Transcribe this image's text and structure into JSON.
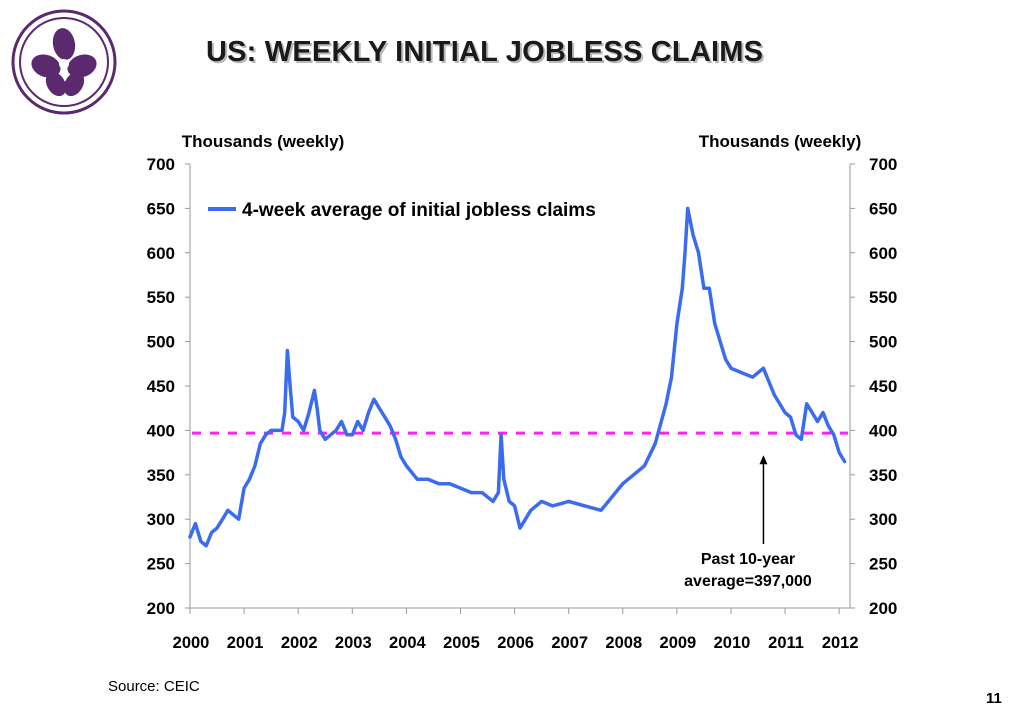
{
  "slide": {
    "title": "US: WEEKLY INITIAL JOBLESS CLAIMS",
    "source": "Source: CEIC",
    "page_number": "11"
  },
  "logo": {
    "icon": "bauhinia-flower-logo",
    "color": "#5b2a6e"
  },
  "colors": {
    "series": "#3b6cf0",
    "reference": "#ff22ee",
    "axis": "#9a9a9a"
  },
  "chart_data": {
    "type": "line",
    "ylabel_left": "Thousands (weekly)",
    "ylabel_right": "Thousands (weekly)",
    "ylim": [
      200,
      700
    ],
    "yticks": [
      "200",
      "250",
      "300",
      "350",
      "400",
      "450",
      "500",
      "550",
      "600",
      "650",
      "700"
    ],
    "xlim": [
      2000,
      2012.2
    ],
    "xticks": [
      "2000",
      "2001",
      "2002",
      "2003",
      "2004",
      "2005",
      "2006",
      "2007",
      "2008",
      "2009",
      "2010",
      "2011",
      "2012"
    ],
    "legend": "top-left",
    "grid": false,
    "series": [
      {
        "name": "4-week average of initial jobless claims",
        "x": [
          2000.0,
          2000.1,
          2000.2,
          2000.3,
          2000.4,
          2000.5,
          2000.6,
          2000.7,
          2000.8,
          2000.9,
          2001.0,
          2001.1,
          2001.2,
          2001.3,
          2001.4,
          2001.5,
          2001.6,
          2001.7,
          2001.75,
          2001.8,
          2001.85,
          2001.9,
          2002.0,
          2002.1,
          2002.2,
          2002.3,
          2002.35,
          2002.4,
          2002.5,
          2002.6,
          2002.7,
          2002.8,
          2002.9,
          2003.0,
          2003.1,
          2003.2,
          2003.3,
          2003.4,
          2003.5,
          2003.6,
          2003.7,
          2003.8,
          2003.9,
          2004.0,
          2004.2,
          2004.4,
          2004.6,
          2004.8,
          2005.0,
          2005.2,
          2005.4,
          2005.6,
          2005.7,
          2005.75,
          2005.8,
          2005.9,
          2006.0,
          2006.1,
          2006.3,
          2006.5,
          2006.7,
          2007.0,
          2007.3,
          2007.6,
          2008.0,
          2008.2,
          2008.4,
          2008.6,
          2008.8,
          2008.9,
          2009.0,
          2009.1,
          2009.15,
          2009.2,
          2009.3,
          2009.4,
          2009.5,
          2009.6,
          2009.7,
          2009.8,
          2009.9,
          2010.0,
          2010.2,
          2010.4,
          2010.6,
          2010.8,
          2011.0,
          2011.1,
          2011.2,
          2011.3,
          2011.4,
          2011.5,
          2011.6,
          2011.7,
          2011.8,
          2011.9,
          2012.0,
          2012.1
        ],
        "values": [
          280,
          295,
          275,
          270,
          285,
          290,
          300,
          310,
          305,
          300,
          335,
          345,
          360,
          385,
          395,
          400,
          400,
          400,
          420,
          490,
          450,
          415,
          410,
          400,
          420,
          445,
          425,
          400,
          390,
          395,
          400,
          410,
          395,
          395,
          410,
          400,
          420,
          435,
          425,
          415,
          405,
          390,
          370,
          360,
          345,
          345,
          340,
          340,
          335,
          330,
          330,
          320,
          330,
          395,
          345,
          320,
          315,
          290,
          310,
          320,
          315,
          320,
          315,
          310,
          340,
          350,
          360,
          385,
          430,
          460,
          520,
          560,
          600,
          650,
          620,
          600,
          560,
          560,
          520,
          500,
          480,
          470,
          465,
          460,
          470,
          440,
          420,
          415,
          395,
          390,
          430,
          420,
          410,
          420,
          405,
          395,
          375,
          365
        ]
      }
    ],
    "reference_line": {
      "value": 397
    },
    "annotation": {
      "text_line1": "Past 10-year",
      "text_line2": "average=397,000",
      "x": 2010.6,
      "y": 372
    }
  }
}
